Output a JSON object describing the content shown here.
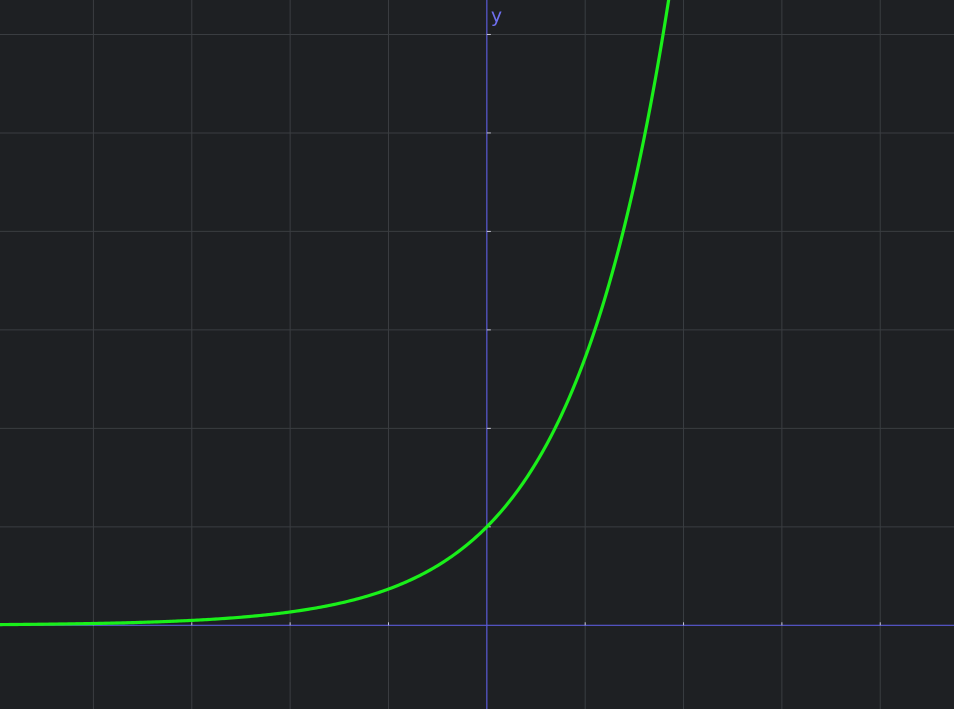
{
  "colors": {
    "background": "#1e2023",
    "grid": "#3a3d41",
    "axis": "#5a5ad6",
    "axis_label": "#6f6ff0",
    "curve": "#1af01a"
  },
  "chart_data": {
    "type": "line",
    "title": "",
    "xlabel": "",
    "ylabel": "y",
    "function": "exp",
    "xlim": [
      -4.95,
      4.75
    ],
    "ylim": [
      -0.85,
      6.35
    ],
    "grid": true,
    "x_ticks": [
      -4,
      -3,
      -2,
      -1,
      1,
      2,
      3,
      4
    ],
    "y_ticks": [
      1,
      2,
      3,
      4,
      5,
      6
    ],
    "series": [
      {
        "x": [
          -4.95,
          -4.5,
          -4,
          -3.5,
          -3,
          -2.5,
          -2,
          -1.5,
          -1,
          -0.5,
          0,
          0.5,
          1,
          1.25,
          1.5,
          1.65,
          1.75,
          1.85
        ],
        "y": [
          0.007,
          0.011,
          0.018,
          0.03,
          0.05,
          0.082,
          0.135,
          0.223,
          0.368,
          0.607,
          1,
          1.649,
          2.718,
          3.49,
          4.482,
          5.207,
          5.755,
          6.36
        ]
      }
    ]
  }
}
